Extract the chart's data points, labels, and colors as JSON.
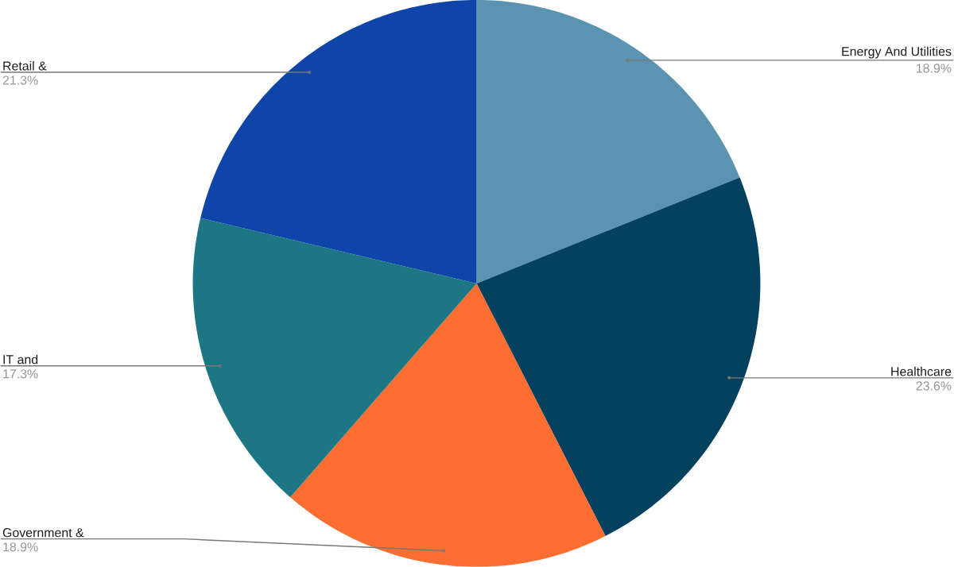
{
  "chart_data": {
    "type": "pie",
    "categories": [
      "Energy And Utilities",
      "Healthcare",
      "Government &",
      "IT and",
      "Retail &"
    ],
    "values": [
      18.9,
      23.6,
      18.9,
      17.3,
      21.3
    ],
    "value_labels": [
      "18.9%",
      "23.6%",
      "18.9%",
      "17.3%",
      "21.3%"
    ],
    "colors": [
      "#5b93b0",
      "#03415e",
      "#fd6e30",
      "#1d7683",
      "#0f45a8"
    ]
  }
}
